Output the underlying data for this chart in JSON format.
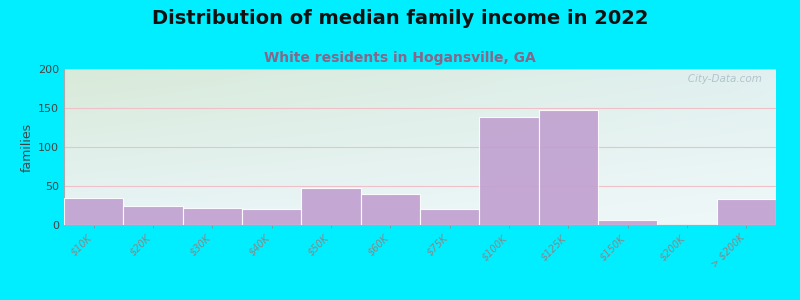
{
  "title": "Distribution of median family income in 2022",
  "subtitle": "White residents in Hogansville, GA",
  "ylabel": "families",
  "categories": [
    "$10K",
    "$20K",
    "$30K",
    "$40K",
    "$50K",
    "$60K",
    "$75K",
    "$100K",
    "$125K",
    "$150K",
    "$200K",
    "> $200K"
  ],
  "values": [
    35,
    25,
    22,
    20,
    48,
    40,
    20,
    138,
    147,
    7,
    0,
    33
  ],
  "bar_color": "#c0a0d0",
  "bar_edge_color": "#b090c0",
  "background_outer": "#00eeff",
  "background_top_left": "#d8ead8",
  "background_bottom_right": "#e8f4f8",
  "grid_color": "#f0c0c8",
  "ylim": [
    0,
    200
  ],
  "yticks": [
    0,
    50,
    100,
    150,
    200
  ],
  "title_fontsize": 14,
  "subtitle_fontsize": 10,
  "subtitle_color": "#886688",
  "watermark": "   City-Data.com",
  "watermark_color": "#aabbc8"
}
